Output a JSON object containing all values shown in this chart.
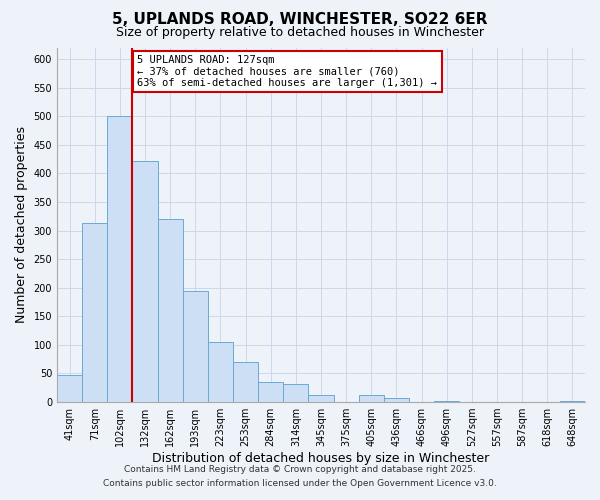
{
  "title_line1": "5, UPLANDS ROAD, WINCHESTER, SO22 6ER",
  "title_line2": "Size of property relative to detached houses in Winchester",
  "xlabel": "Distribution of detached houses by size in Winchester",
  "ylabel": "Number of detached properties",
  "categories": [
    "41sqm",
    "71sqm",
    "102sqm",
    "132sqm",
    "162sqm",
    "193sqm",
    "223sqm",
    "253sqm",
    "284sqm",
    "314sqm",
    "345sqm",
    "375sqm",
    "405sqm",
    "436sqm",
    "466sqm",
    "496sqm",
    "527sqm",
    "557sqm",
    "587sqm",
    "618sqm",
    "648sqm"
  ],
  "values": [
    47,
    313,
    500,
    422,
    320,
    195,
    105,
    70,
    35,
    32,
    13,
    0,
    13,
    8,
    0,
    2,
    0,
    0,
    0,
    0,
    2
  ],
  "bar_color": "#ccdff5",
  "bar_edge_color": "#6aaad4",
  "vline_color": "#cc0000",
  "vline_position": 2.5,
  "annotation_text": "5 UPLANDS ROAD: 127sqm\n← 37% of detached houses are smaller (760)\n63% of semi-detached houses are larger (1,301) →",
  "annotation_box_edge": "#cc0000",
  "annotation_box_face": "#ffffff",
  "ylim": [
    0,
    620
  ],
  "yticks": [
    0,
    50,
    100,
    150,
    200,
    250,
    300,
    350,
    400,
    450,
    500,
    550,
    600
  ],
  "footer_line1": "Contains HM Land Registry data © Crown copyright and database right 2025.",
  "footer_line2": "Contains public sector information licensed under the Open Government Licence v3.0.",
  "background_color": "#eef2f9",
  "plot_background": "#eef2f9",
  "title_fontsize": 11,
  "subtitle_fontsize": 9,
  "axis_label_fontsize": 9,
  "tick_fontsize": 7,
  "annotation_fontsize": 7.5,
  "footer_fontsize": 6.5
}
